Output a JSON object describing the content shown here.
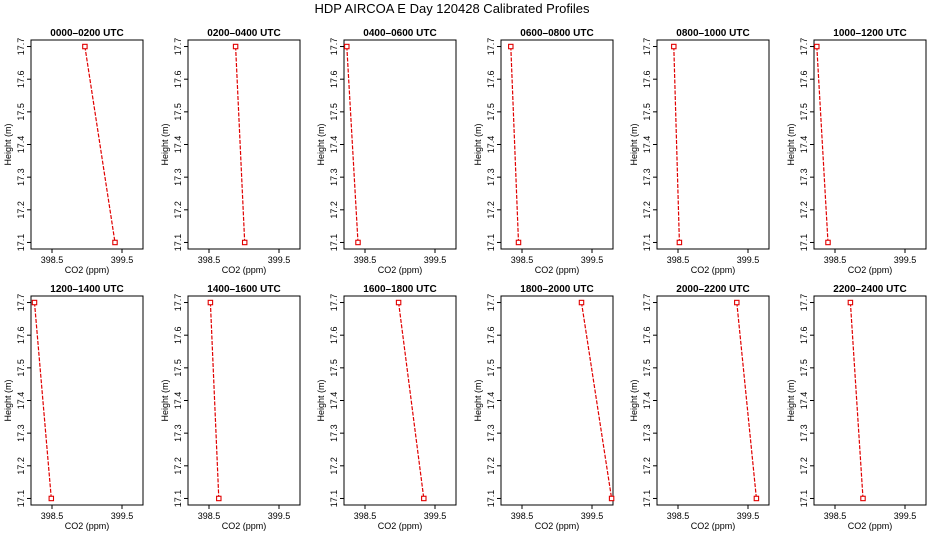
{
  "title": "HDP AIRCOA E  Day 120428  Calibrated Profiles",
  "colors": {
    "series": "#e00000",
    "axis": "#000000",
    "background": "#ffffff"
  },
  "axes": {
    "xlabel": "CO2 (ppm)",
    "ylabel": "Height (m)",
    "xlim": [
      398.2,
      399.8
    ],
    "ylim": [
      17.08,
      17.72
    ],
    "xticks": [
      398.5,
      399.5
    ],
    "xtick_labels": [
      "398.5",
      "399.5"
    ],
    "yticks": [
      17.1,
      17.2,
      17.3,
      17.4,
      17.5,
      17.6,
      17.7
    ],
    "ytick_labels": [
      "17.1",
      "17.2",
      "17.3",
      "17.4",
      "17.5",
      "17.6",
      "17.7"
    ]
  },
  "chart_data": [
    {
      "type": "line",
      "title": "0000–0200 UTC",
      "x": [
        398.97,
        399.4
      ],
      "y": [
        17.7,
        17.1
      ]
    },
    {
      "type": "line",
      "title": "0200–0400 UTC",
      "x": [
        398.88,
        399.01
      ],
      "y": [
        17.7,
        17.1
      ]
    },
    {
      "type": "line",
      "title": "0400–0600 UTC",
      "x": [
        398.24,
        398.4
      ],
      "y": [
        17.7,
        17.1
      ]
    },
    {
      "type": "line",
      "title": "0600–0800 UTC",
      "x": [
        398.34,
        398.45
      ],
      "y": [
        17.7,
        17.1
      ]
    },
    {
      "type": "line",
      "title": "0800–1000 UTC",
      "x": [
        398.44,
        398.52
      ],
      "y": [
        17.7,
        17.1
      ]
    },
    {
      "type": "line",
      "title": "1000–1200 UTC",
      "x": [
        398.24,
        398.4
      ],
      "y": [
        17.7,
        17.1
      ]
    },
    {
      "type": "line",
      "title": "1200–1400 UTC",
      "x": [
        398.25,
        398.49
      ],
      "y": [
        17.7,
        17.1
      ]
    },
    {
      "type": "line",
      "title": "1400–1600 UTC",
      "x": [
        398.52,
        398.64
      ],
      "y": [
        17.7,
        17.1
      ]
    },
    {
      "type": "line",
      "title": "1600–1800 UTC",
      "x": [
        398.98,
        399.34
      ],
      "y": [
        17.7,
        17.1
      ]
    },
    {
      "type": "line",
      "title": "1800–2000 UTC",
      "x": [
        399.35,
        399.78
      ],
      "y": [
        17.7,
        17.1
      ]
    },
    {
      "type": "line",
      "title": "2000–2200 UTC",
      "x": [
        399.34,
        399.62
      ],
      "y": [
        17.7,
        17.1
      ]
    },
    {
      "type": "line",
      "title": "2200–2400 UTC",
      "x": [
        398.72,
        398.9
      ],
      "y": [
        17.7,
        17.1
      ]
    }
  ]
}
